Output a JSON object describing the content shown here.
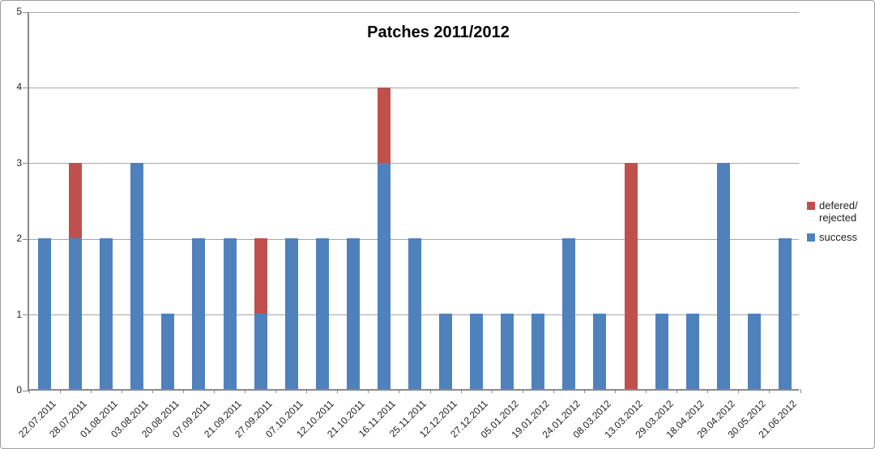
{
  "chart_data": {
    "type": "bar",
    "stacked": true,
    "title": "Patches 2011/2012",
    "xlabel": "",
    "ylabel": "",
    "ylim": [
      0,
      5
    ],
    "yticks": [
      0,
      1,
      2,
      3,
      4,
      5
    ],
    "grid": true,
    "legend_position": "right",
    "categories": [
      "22.07.2011",
      "28.07.2011",
      "01.08.2011",
      "03.08.2011",
      "20.08.2011",
      "07.09.2011",
      "21.09.2011",
      "27.09.2011",
      "07.10.2011",
      "12.10.2011",
      "21.10.2011",
      "16.11.2011",
      "25.11.2011",
      "12.12.2011",
      "27.12.2011",
      "05.01.2012",
      "19.01.2012",
      "24.01.2012",
      "08.03.2012",
      "13.03.2012",
      "29.03.2012",
      "18.04.2012",
      "29.04.2012",
      "30.05.2012",
      "21.06.2012"
    ],
    "series": [
      {
        "name": "defered/rejected",
        "color": "#C0504D",
        "values": [
          0,
          1,
          0,
          0,
          0,
          0,
          0,
          1,
          0,
          0,
          0,
          1,
          0,
          0,
          0,
          0,
          0,
          0,
          0,
          3,
          0,
          0,
          0,
          0,
          0
        ]
      },
      {
        "name": "success",
        "color": "#4F81BD",
        "values": [
          2,
          2,
          2,
          3,
          1,
          2,
          2,
          1,
          2,
          2,
          2,
          3,
          2,
          1,
          1,
          1,
          1,
          2,
          1,
          0,
          1,
          1,
          3,
          1,
          2
        ]
      }
    ]
  },
  "legend": {
    "defered_rejected": "defered/\nrejected",
    "success": "success"
  },
  "colors": {
    "success": "#4F81BD",
    "defered_rejected": "#C0504D",
    "gridline": "#A6A6A6",
    "axis": "#8A8A8A",
    "frame_border": "#9E9E9E"
  }
}
